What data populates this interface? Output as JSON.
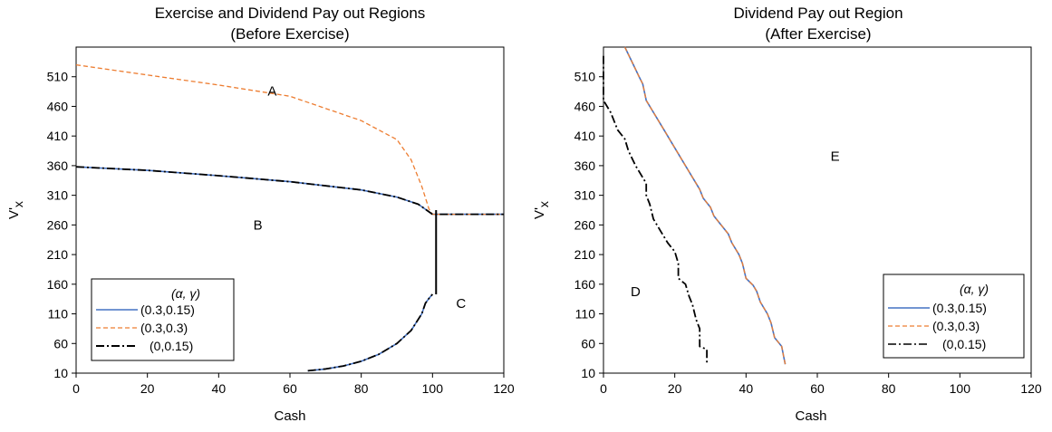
{
  "chart_data": [
    {
      "type": "line",
      "title": "Exercise and Dividend Pay out Regions",
      "subtitle": "(Before Exercise)",
      "xlabel": "Cash",
      "ylabel_main": "V'",
      "ylabel_sub": "x",
      "xlim": [
        0,
        120
      ],
      "ylim": [
        10,
        560
      ],
      "xticks": [
        0,
        20,
        40,
        60,
        80,
        100,
        120
      ],
      "yticks": [
        10,
        60,
        110,
        160,
        210,
        260,
        310,
        360,
        410,
        460,
        510
      ],
      "grid": false,
      "legend": {
        "title": "(α, γ)",
        "placement": "bottom-left",
        "entries": [
          "(0.3,0.15)",
          "(0.3,0.3)",
          "(0,0.15)"
        ]
      },
      "regions": [
        {
          "label": "A",
          "x": 55,
          "y": 478
        },
        {
          "label": "B",
          "x": 51,
          "y": 252
        },
        {
          "label": "C",
          "x": 108,
          "y": 120
        }
      ],
      "series": [
        {
          "name": "(0.3,0.15)",
          "color": "#4472C4",
          "style": "solid",
          "segments": [
            [
              [
                0,
                358
              ],
              [
                20,
                352
              ],
              [
                40,
                343
              ],
              [
                60,
                333
              ],
              [
                80,
                319
              ],
              [
                90,
                307
              ],
              [
                96,
                295
              ],
              [
                100,
                278
              ],
              [
                120,
                278
              ]
            ],
            [
              [
                65,
                14
              ],
              [
                70,
                17
              ],
              [
                75,
                22
              ],
              [
                80,
                30
              ],
              [
                85,
                42
              ],
              [
                90,
                60
              ],
              [
                94,
                82
              ],
              [
                97,
                110
              ],
              [
                98,
                128
              ],
              [
                99,
                136
              ],
              [
                100,
                143
              ]
            ]
          ]
        },
        {
          "name": "(0.3,0.3)",
          "color": "#ED7D31",
          "style": "dashed",
          "segments": [
            [
              [
                0,
                530
              ],
              [
                20,
                513
              ],
              [
                40,
                496
              ],
              [
                60,
                477
              ],
              [
                80,
                436
              ],
              [
                90,
                404
              ],
              [
                94,
                370
              ],
              [
                97,
                325
              ],
              [
                99,
                287
              ],
              [
                100,
                278
              ],
              [
                120,
                278
              ]
            ]
          ]
        },
        {
          "name": "(0,0.15)",
          "color": "#000000",
          "style": "dashdot",
          "segments": [
            [
              [
                0,
                358
              ],
              [
                20,
                352
              ],
              [
                40,
                343
              ],
              [
                60,
                333
              ],
              [
                80,
                319
              ],
              [
                90,
                307
              ],
              [
                96,
                295
              ],
              [
                100,
                278
              ],
              [
                120,
                278
              ]
            ],
            [
              [
                65,
                14
              ],
              [
                70,
                17
              ],
              [
                75,
                22
              ],
              [
                80,
                30
              ],
              [
                85,
                42
              ],
              [
                90,
                60
              ],
              [
                94,
                82
              ],
              [
                97,
                110
              ],
              [
                98,
                128
              ],
              [
                99,
                136
              ],
              [
                100,
                143
              ]
            ]
          ]
        }
      ],
      "boundary": {
        "color": "#000000",
        "points": [
          [
            101,
            143
          ],
          [
            101,
            285
          ]
        ]
      }
    },
    {
      "type": "line",
      "title": "Dividend Pay out Region",
      "subtitle": "(After Exercise)",
      "xlabel": "Cash",
      "ylabel_main": "V'",
      "ylabel_sub": "x",
      "xlim": [
        0,
        120
      ],
      "ylim": [
        10,
        560
      ],
      "xticks": [
        0,
        20,
        40,
        60,
        80,
        100,
        120
      ],
      "yticks": [
        10,
        60,
        110,
        160,
        210,
        260,
        310,
        360,
        410,
        460,
        510
      ],
      "grid": false,
      "legend": {
        "title": "(α, γ)",
        "placement": "bottom-right",
        "entries": [
          "(0.3,0.15)",
          "(0.3,0.3)",
          "(0,0.15)"
        ]
      },
      "regions": [
        {
          "label": "D",
          "x": 9,
          "y": 140
        },
        {
          "label": "E",
          "x": 65,
          "y": 368
        }
      ],
      "series": [
        {
          "name": "(0.3,0.15)",
          "color": "#4472C4",
          "style": "solid",
          "segments": [
            [
              [
                6,
                560
              ],
              [
                8,
                535
              ],
              [
                10,
                510
              ],
              [
                11,
                498
              ],
              [
                12,
                470
              ],
              [
                14,
                450
              ],
              [
                17,
                420
              ],
              [
                20,
                390
              ],
              [
                24,
                350
              ],
              [
                27,
                320
              ],
              [
                28,
                305
              ],
              [
                30,
                290
              ],
              [
                31,
                275
              ],
              [
                33,
                260
              ],
              [
                35,
                245
              ],
              [
                36,
                230
              ],
              [
                38,
                210
              ],
              [
                39,
                195
              ],
              [
                40,
                170
              ],
              [
                42,
                158
              ],
              [
                43,
                148
              ],
              [
                44,
                130
              ],
              [
                46,
                110
              ],
              [
                47,
                95
              ],
              [
                48,
                70
              ],
              [
                50,
                55
              ],
              [
                50.5,
                40
              ],
              [
                51,
                25
              ]
            ]
          ]
        },
        {
          "name": "(0.3,0.3)",
          "color": "#ED7D31",
          "style": "dashed",
          "segments": [
            [
              [
                6,
                560
              ],
              [
                8,
                535
              ],
              [
                10,
                510
              ],
              [
                11,
                498
              ],
              [
                12,
                470
              ],
              [
                14,
                450
              ],
              [
                17,
                420
              ],
              [
                20,
                390
              ],
              [
                24,
                350
              ],
              [
                27,
                320
              ],
              [
                28,
                305
              ],
              [
                30,
                290
              ],
              [
                31,
                275
              ],
              [
                33,
                260
              ],
              [
                35,
                245
              ],
              [
                36,
                230
              ],
              [
                38,
                210
              ],
              [
                39,
                195
              ],
              [
                40,
                170
              ],
              [
                42,
                158
              ],
              [
                43,
                148
              ],
              [
                44,
                130
              ],
              [
                46,
                110
              ],
              [
                47,
                95
              ],
              [
                48,
                70
              ],
              [
                50,
                55
              ],
              [
                50.5,
                40
              ],
              [
                51,
                25
              ]
            ]
          ]
        },
        {
          "name": "(0,0.15)",
          "color": "#000000",
          "style": "dashdot",
          "segments": [
            [
              [
                0,
                545
              ],
              [
                0,
                470
              ],
              [
                2,
                450
              ],
              [
                4,
                420
              ],
              [
                6,
                405
              ],
              [
                7,
                385
              ],
              [
                9,
                360
              ],
              [
                11,
                340
              ],
              [
                12,
                330
              ],
              [
                12,
                310
              ],
              [
                13,
                295
              ],
              [
                14,
                270
              ],
              [
                16,
                250
              ],
              [
                18,
                230
              ],
              [
                20,
                215
              ],
              [
                21,
                195
              ],
              [
                21,
                170
              ],
              [
                23,
                160
              ],
              [
                24,
                140
              ],
              [
                25,
                125
              ],
              [
                26,
                100
              ],
              [
                27,
                85
              ],
              [
                27,
                55
              ],
              [
                29,
                50
              ],
              [
                29,
                25
              ]
            ]
          ]
        }
      ]
    }
  ]
}
